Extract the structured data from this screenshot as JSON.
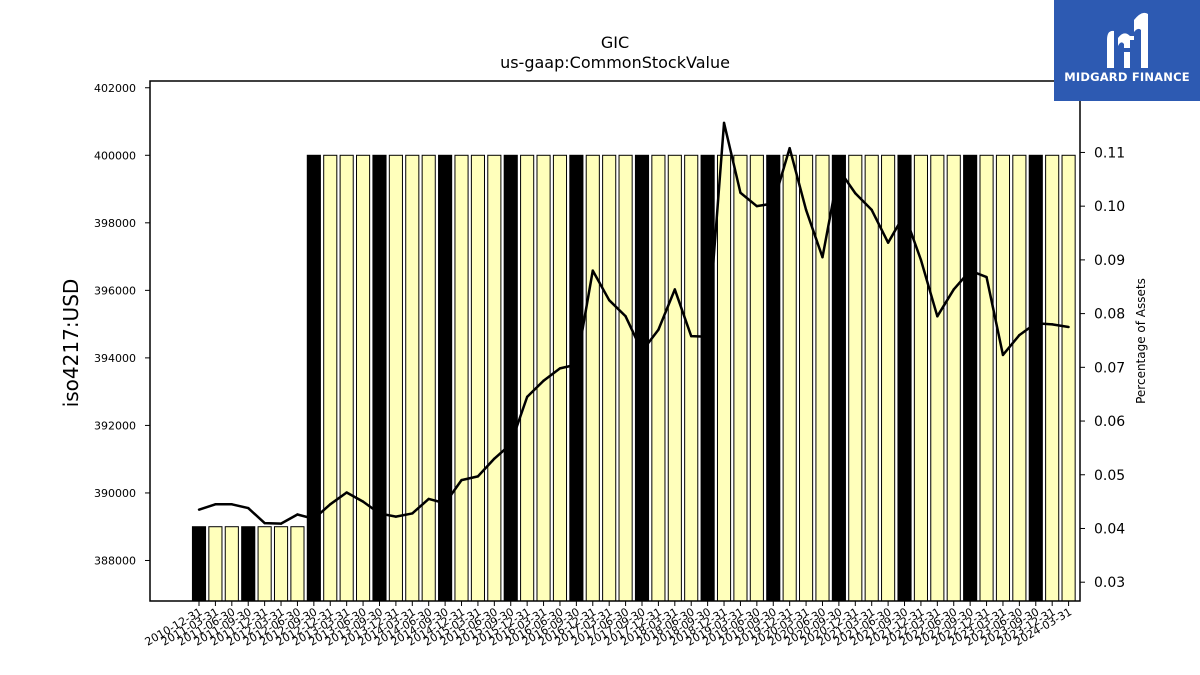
{
  "brand": {
    "name": "MIDGARD FINANCE",
    "logo_icon": "midgard-m-logo-icon",
    "background": "#2d5ab2"
  },
  "chart_data": {
    "type": "bar",
    "title": "GIC",
    "subtitle": "us-gaap:CommonStockValue",
    "ylabel": "iso4217:USD",
    "y2label": "Percentage of Assets",
    "ylim": [
      386800,
      402200
    ],
    "y2lim": [
      0.0265,
      0.1233
    ],
    "yticks": [
      "388000",
      "390000",
      "392000",
      "394000",
      "396000",
      "398000",
      "400000",
      "402000"
    ],
    "y2ticks": [
      "0.03",
      "0.04",
      "0.05",
      "0.06",
      "0.07",
      "0.08",
      "0.09",
      "0.10",
      "0.11"
    ],
    "colors": {
      "bar": "#ffffbb",
      "bar_highlight": "#000000",
      "line": "#000000"
    },
    "categories": [
      "2010-12-31",
      "2011-03-31",
      "2011-06-30",
      "2011-09-30",
      "2011-12-31",
      "2012-03-31",
      "2012-06-30",
      "2012-09-30",
      "2012-12-31",
      "2013-03-31",
      "2013-06-30",
      "2013-09-30",
      "2013-12-31",
      "2014-03-31",
      "2014-06-30",
      "2014-09-30",
      "2014-12-31",
      "2015-03-31",
      "2015-06-30",
      "2015-09-30",
      "2015-12-31",
      "2016-03-31",
      "2016-06-30",
      "2016-09-30",
      "2016-12-31",
      "2017-03-31",
      "2017-06-30",
      "2017-09-30",
      "2017-12-31",
      "2018-03-31",
      "2018-06-30",
      "2018-09-30",
      "2018-12-31",
      "2019-03-31",
      "2019-06-30",
      "2019-09-30",
      "2019-12-31",
      "2020-03-31",
      "2020-06-30",
      "2020-09-30",
      "2020-12-31",
      "2021-03-31",
      "2021-06-30",
      "2021-09-30",
      "2021-12-31",
      "2022-03-31",
      "2022-06-30",
      "2022-09-30",
      "2022-12-31",
      "2023-03-31",
      "2023-06-30",
      "2023-09-30",
      "2023-12-31",
      "2024-03-31"
    ],
    "highlighted": [
      "2010-12-31",
      "2011-09-30",
      "2012-09-30",
      "2013-09-30",
      "2014-09-30",
      "2015-09-30",
      "2016-09-30",
      "2017-09-30",
      "2018-09-30",
      "2019-09-30",
      "2020-09-30",
      "2021-09-30",
      "2022-09-30",
      "2023-09-30"
    ],
    "series": [
      {
        "type": "bar",
        "axis": "left",
        "values": [
          389000,
          389000,
          389000,
          389000,
          389000,
          389000,
          389000,
          400000,
          400000,
          400000,
          400000,
          400000,
          400000,
          400000,
          400000,
          400000,
          400000,
          400000,
          400000,
          400000,
          400000,
          400000,
          400000,
          400000,
          400000,
          400000,
          400000,
          400000,
          400000,
          400000,
          400000,
          400000,
          400000,
          400000,
          400000,
          400000,
          400000,
          400000,
          400000,
          400000,
          400000,
          400000,
          400000,
          400000,
          400000,
          400000,
          400000,
          400000,
          400000,
          400000,
          400000,
          400000,
          400000,
          400000
        ]
      },
      {
        "type": "line",
        "axis": "right",
        "values": [
          0.0435,
          0.0445,
          0.0445,
          0.0438,
          0.041,
          0.0409,
          0.0426,
          0.0418,
          0.0445,
          0.0467,
          0.045,
          0.0428,
          0.0422,
          0.0428,
          0.0455,
          0.0447,
          0.049,
          0.0497,
          0.053,
          0.0557,
          0.0645,
          0.0675,
          0.0698,
          0.0705,
          0.088,
          0.0825,
          0.0795,
          0.073,
          0.077,
          0.0845,
          0.0758,
          0.0757,
          0.1155,
          0.1025,
          0.1,
          0.1005,
          0.1108,
          0.0993,
          0.0905,
          0.1068,
          0.1024,
          0.0993,
          0.0932,
          0.0985,
          0.09,
          0.0795,
          0.0845,
          0.088,
          0.0868,
          0.0723,
          0.076,
          0.0782,
          0.078,
          0.0775
        ]
      }
    ],
    "grid": false,
    "legend": "none"
  }
}
